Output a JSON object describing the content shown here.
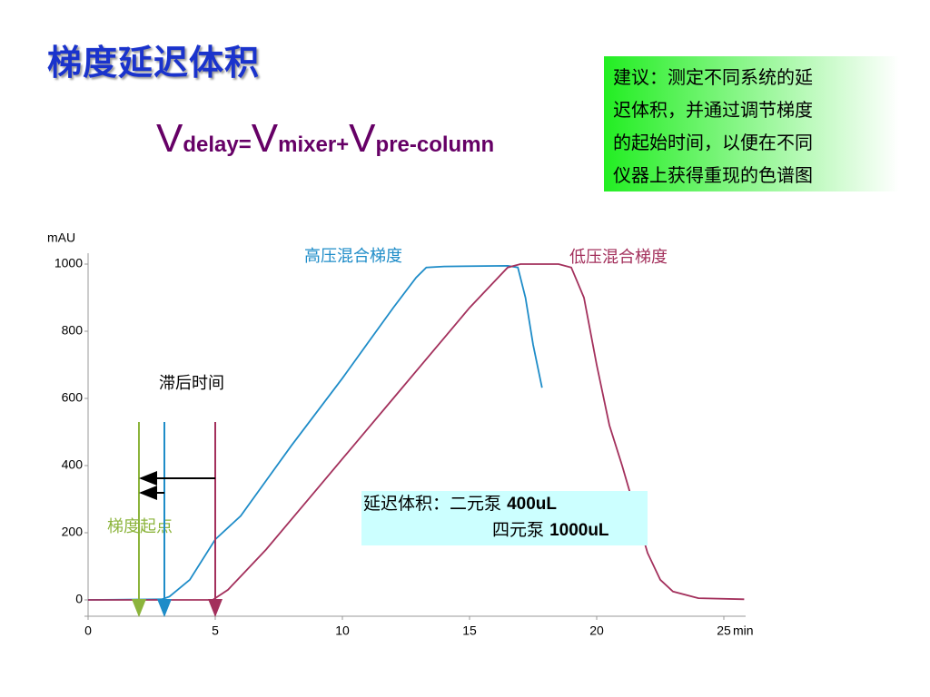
{
  "title": "梯度延迟体积",
  "formula": [
    {
      "main": "V",
      "sub": "delay="
    },
    {
      "main": "V",
      "sub": "mixer+"
    },
    {
      "main": "V",
      "sub": "pre-column"
    }
  ],
  "note": {
    "lines": [
      "建议：测定不同系统的延",
      "迟体积，并通过调节梯度",
      "的起始时间，以便在不同",
      "仪器上获得重现的色谱图"
    ]
  },
  "chart_data": {
    "type": "line",
    "x_label": "min",
    "y_label": "mAU",
    "xlim": [
      0,
      25
    ],
    "ylim": [
      0,
      1000
    ],
    "xticks": [
      0,
      5,
      10,
      15,
      20,
      25
    ],
    "yticks": [
      0,
      200,
      400,
      600,
      800,
      1000
    ],
    "series": [
      {
        "name": "高压混合梯度",
        "color": "#1e8cc8",
        "x": [
          0,
          2.9,
          3.2,
          4,
          5,
          6,
          7,
          8,
          9,
          10,
          11,
          12,
          12.9,
          13.3,
          14,
          16.5,
          16.9,
          17.2,
          17.5,
          17.85
        ],
        "values": [
          0,
          2,
          10,
          60,
          180,
          250,
          355,
          460,
          560,
          660,
          765,
          870,
          960,
          990,
          993,
          995,
          990,
          900,
          760,
          632
        ]
      },
      {
        "name": "低压混合梯度",
        "color": "#a3305c",
        "x": [
          0,
          4.9,
          5.5,
          6,
          7,
          8,
          9,
          10,
          11,
          12,
          13,
          14,
          15,
          16,
          16.5,
          17,
          18.5,
          19,
          19.5,
          20,
          20.5,
          21,
          21.5,
          22,
          22.5,
          23,
          24,
          25.8
        ],
        "values": [
          0,
          0,
          30,
          70,
          150,
          240,
          330,
          420,
          510,
          600,
          690,
          780,
          870,
          950,
          990,
          1000,
          1000,
          990,
          900,
          700,
          520,
          400,
          270,
          140,
          60,
          25,
          5,
          2
        ]
      }
    ],
    "markers": [
      {
        "x": 2,
        "color": "#8cb43c"
      },
      {
        "x": 3,
        "color": "#1e8cc8"
      },
      {
        "x": 5,
        "color": "#a3305c"
      }
    ],
    "annotations": [
      "滞后时间",
      "梯度起点"
    ],
    "delay_box": [
      {
        "label": "延迟体积：二元泵",
        "value": "400uL"
      },
      {
        "label": "四元泵",
        "value": "1000uL"
      }
    ]
  }
}
